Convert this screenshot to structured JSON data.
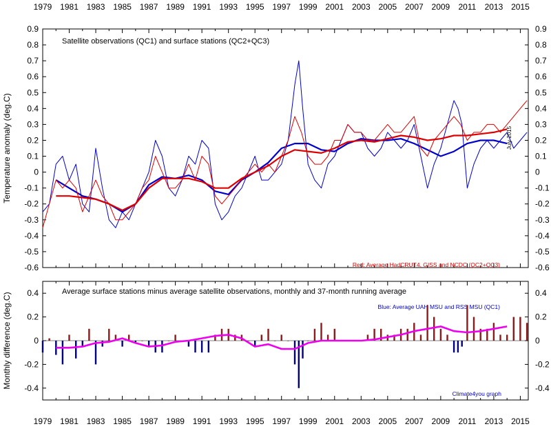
{
  "chart_data": [
    {
      "type": "line",
      "title": "Satellite observations (QC1) and surface stations (QC2+QC3)",
      "ylabel": "Temperature anomaly (deg.C)",
      "ylim": [
        -0.6,
        0.9
      ],
      "yticks": [
        "0.9",
        "0.8",
        "0.7",
        "0.6",
        "0.5",
        "0.4",
        "0.3",
        "0.2",
        "0.1",
        "0",
        "-0.1",
        "-0.2",
        "-0.3",
        "-0.4",
        "-0.5",
        "-0.6"
      ],
      "xlim": [
        1979.0,
        2015.6
      ],
      "x_tick_labels": [
        "1979",
        "1981",
        "1983",
        "1985",
        "1987",
        "1989",
        "1991",
        "1993",
        "1995",
        "1997",
        "1999",
        "2001",
        "2003",
        "2005",
        "2007",
        "2009",
        "2011",
        "2013",
        "2015"
      ],
      "date_note": "July 2015",
      "legend": [
        "Blue: Average UAH MSU and RSS MSU (QC1)",
        "Red: Average HadCRUT4, GISS and NCDC (QC2+QC3)"
      ],
      "grid": false,
      "series": [
        {
          "name": "Blue: Average UAH MSU and RSS MSU (QC1)",
          "color": "#0000cc",
          "x": [
            1979.0,
            1979.5,
            1980.0,
            1980.5,
            1981.0,
            1981.5,
            1982.0,
            1982.5,
            1983.0,
            1983.5,
            1984.0,
            1984.5,
            1985.0,
            1985.5,
            1986.0,
            1986.5,
            1987.0,
            1987.5,
            1988.0,
            1988.5,
            1989.0,
            1989.5,
            1990.0,
            1990.5,
            1991.0,
            1991.5,
            1992.0,
            1992.5,
            1993.0,
            1993.5,
            1994.0,
            1994.5,
            1995.0,
            1995.5,
            1996.0,
            1996.5,
            1997.0,
            1997.5,
            1998.0,
            1998.3,
            1998.6,
            1999.0,
            1999.5,
            2000.0,
            2000.5,
            2001.0,
            2001.5,
            2002.0,
            2002.5,
            2003.0,
            2003.5,
            2004.0,
            2004.5,
            2005.0,
            2005.5,
            2006.0,
            2006.5,
            2007.0,
            2007.5,
            2008.0,
            2008.5,
            2009.0,
            2009.5,
            2010.0,
            2010.3,
            2010.6,
            2011.0,
            2011.5,
            2012.0,
            2012.5,
            2013.0,
            2013.5,
            2014.0,
            2014.5,
            2015.0,
            2015.5
          ],
          "values": [
            -0.25,
            -0.2,
            0.05,
            0.1,
            -0.05,
            0.05,
            -0.2,
            -0.25,
            0.15,
            -0.1,
            -0.3,
            -0.35,
            -0.25,
            -0.3,
            -0.2,
            -0.1,
            0.0,
            0.2,
            0.1,
            -0.1,
            -0.15,
            -0.05,
            0.1,
            0.05,
            0.2,
            0.15,
            -0.2,
            -0.3,
            -0.25,
            -0.15,
            -0.1,
            0.0,
            0.1,
            -0.05,
            -0.05,
            0.0,
            0.05,
            0.2,
            0.55,
            0.7,
            0.4,
            0.05,
            -0.05,
            -0.1,
            0.05,
            0.1,
            0.2,
            0.3,
            0.25,
            0.25,
            0.15,
            0.1,
            0.15,
            0.25,
            0.2,
            0.15,
            0.2,
            0.3,
            0.1,
            -0.1,
            0.05,
            0.15,
            0.3,
            0.45,
            0.4,
            0.3,
            -0.1,
            0.05,
            0.15,
            0.2,
            0.15,
            0.2,
            0.25,
            0.15,
            0.2,
            0.25
          ]
        },
        {
          "name": "Blue running average",
          "color": "#0000cc",
          "x": [
            1980.0,
            1981.0,
            1982.0,
            1983.0,
            1984.0,
            1985.0,
            1986.0,
            1987.0,
            1988.0,
            1989.0,
            1990.0,
            1991.0,
            1992.0,
            1993.0,
            1994.0,
            1995.0,
            1996.0,
            1997.0,
            1998.0,
            1999.0,
            2000.0,
            2001.0,
            2002.0,
            2003.0,
            2004.0,
            2005.0,
            2006.0,
            2007.0,
            2008.0,
            2009.0,
            2010.0,
            2011.0,
            2012.0,
            2013.0,
            2014.0
          ],
          "values": [
            -0.05,
            -0.1,
            -0.15,
            -0.17,
            -0.2,
            -0.25,
            -0.2,
            -0.08,
            -0.03,
            -0.04,
            -0.02,
            -0.05,
            -0.12,
            -0.14,
            -0.05,
            0.0,
            0.06,
            0.15,
            0.18,
            0.18,
            0.14,
            0.13,
            0.18,
            0.21,
            0.2,
            0.2,
            0.21,
            0.18,
            0.14,
            0.1,
            0.13,
            0.18,
            0.2,
            0.2,
            0.18
          ]
        },
        {
          "name": "Red: Average HadCRUT4, GISS and NCDC (QC2+QC3)",
          "color": "#dd0000",
          "x": [
            1979.0,
            1979.5,
            1980.0,
            1980.5,
            1981.0,
            1981.5,
            1982.0,
            1982.5,
            1983.0,
            1983.5,
            1984.0,
            1984.5,
            1985.0,
            1985.5,
            1986.0,
            1986.5,
            1987.0,
            1987.5,
            1988.0,
            1988.5,
            1989.0,
            1989.5,
            1990.0,
            1990.5,
            1991.0,
            1991.5,
            1992.0,
            1992.5,
            1993.0,
            1993.5,
            1994.0,
            1994.5,
            1995.0,
            1995.5,
            1996.0,
            1996.5,
            1997.0,
            1997.5,
            1998.0,
            1998.5,
            1999.0,
            1999.5,
            2000.0,
            2000.5,
            2001.0,
            2001.5,
            2002.0,
            2002.5,
            2003.0,
            2003.5,
            2004.0,
            2004.5,
            2005.0,
            2005.5,
            2006.0,
            2006.5,
            2007.0,
            2007.5,
            2008.0,
            2008.5,
            2009.0,
            2009.5,
            2010.0,
            2010.5,
            2011.0,
            2011.5,
            2012.0,
            2012.5,
            2013.0,
            2013.5,
            2014.0,
            2014.5,
            2015.0,
            2015.5
          ],
          "values": [
            -0.35,
            -0.2,
            -0.05,
            -0.1,
            -0.05,
            -0.1,
            -0.25,
            -0.15,
            -0.05,
            -0.15,
            -0.2,
            -0.3,
            -0.3,
            -0.25,
            -0.2,
            -0.1,
            -0.05,
            0.1,
            0.0,
            -0.1,
            -0.1,
            -0.05,
            0.05,
            -0.05,
            0.1,
            0.05,
            -0.15,
            -0.2,
            -0.15,
            -0.1,
            -0.05,
            0.0,
            0.05,
            0.0,
            0.05,
            0.0,
            0.1,
            0.2,
            0.35,
            0.25,
            0.1,
            0.05,
            0.05,
            0.1,
            0.2,
            0.2,
            0.3,
            0.25,
            0.25,
            0.2,
            0.2,
            0.25,
            0.3,
            0.25,
            0.25,
            0.3,
            0.35,
            0.15,
            0.1,
            0.2,
            0.25,
            0.3,
            0.35,
            0.3,
            0.2,
            0.25,
            0.25,
            0.3,
            0.3,
            0.25,
            0.3,
            0.35,
            0.4,
            0.45
          ]
        },
        {
          "name": "Red running average",
          "color": "#dd0000",
          "x": [
            1980.0,
            1981.0,
            1982.0,
            1983.0,
            1984.0,
            1985.0,
            1986.0,
            1987.0,
            1988.0,
            1989.0,
            1990.0,
            1991.0,
            1992.0,
            1993.0,
            1994.0,
            1995.0,
            1996.0,
            1997.0,
            1998.0,
            1999.0,
            2000.0,
            2001.0,
            2002.0,
            2003.0,
            2004.0,
            2005.0,
            2006.0,
            2007.0,
            2008.0,
            2009.0,
            2010.0,
            2011.0,
            2012.0,
            2013.0,
            2014.0
          ],
          "values": [
            -0.15,
            -0.15,
            -0.16,
            -0.17,
            -0.2,
            -0.24,
            -0.2,
            -0.1,
            -0.04,
            -0.04,
            -0.04,
            -0.06,
            -0.1,
            -0.1,
            -0.04,
            0.0,
            0.04,
            0.1,
            0.14,
            0.13,
            0.12,
            0.15,
            0.19,
            0.2,
            0.19,
            0.21,
            0.23,
            0.22,
            0.2,
            0.21,
            0.23,
            0.23,
            0.24,
            0.25,
            0.27
          ]
        }
      ]
    },
    {
      "type": "bar",
      "title": "Average surface stations minus average satellite observations, monthly and 37-month running average",
      "ylabel": "Monthly difference (deg.C)",
      "ylim": [
        -0.5,
        0.5
      ],
      "yticks": [
        "0.4",
        "0.2",
        "0",
        "-0.2",
        "-0.4"
      ],
      "xlim": [
        1979.0,
        2015.6
      ],
      "x_tick_labels": [
        "1979",
        "1981",
        "1983",
        "1985",
        "1987",
        "1989",
        "1991",
        "1993",
        "1995",
        "1997",
        "1999",
        "2001",
        "2003",
        "2005",
        "2007",
        "2009",
        "2011",
        "2013",
        "2015"
      ],
      "credit": "Climate4you graph",
      "positive_color": "#8b1a1a",
      "negative_color": "#000080",
      "grid": false,
      "x": [
        1979.0,
        1979.5,
        1980.0,
        1980.5,
        1981.0,
        1981.5,
        1982.0,
        1982.5,
        1983.0,
        1983.5,
        1984.0,
        1984.5,
        1985.0,
        1985.5,
        1986.0,
        1986.5,
        1987.0,
        1987.5,
        1988.0,
        1988.5,
        1989.0,
        1989.5,
        1990.0,
        1990.5,
        1991.0,
        1991.5,
        1992.0,
        1992.5,
        1993.0,
        1993.5,
        1994.0,
        1994.5,
        1995.0,
        1995.5,
        1996.0,
        1996.5,
        1997.0,
        1997.5,
        1998.0,
        1998.3,
        1998.6,
        1999.0,
        1999.5,
        2000.0,
        2000.5,
        2001.0,
        2001.5,
        2002.0,
        2002.5,
        2003.0,
        2003.5,
        2004.0,
        2004.5,
        2005.0,
        2005.5,
        2006.0,
        2006.5,
        2007.0,
        2007.5,
        2008.0,
        2008.5,
        2009.0,
        2009.5,
        2010.0,
        2010.3,
        2010.6,
        2011.0,
        2011.5,
        2012.0,
        2012.5,
        2013.0,
        2013.5,
        2014.0,
        2014.5,
        2015.0,
        2015.5
      ],
      "values": [
        -0.1,
        0.02,
        -0.12,
        -0.2,
        0.05,
        -0.15,
        -0.05,
        0.1,
        -0.2,
        -0.05,
        0.1,
        0.05,
        -0.05,
        0.05,
        -0.02,
        0.0,
        -0.05,
        -0.1,
        -0.1,
        0.0,
        0.05,
        0.0,
        -0.05,
        -0.1,
        -0.1,
        -0.1,
        0.05,
        0.1,
        0.1,
        0.05,
        0.05,
        0.0,
        -0.05,
        0.05,
        0.1,
        0.0,
        0.05,
        0.0,
        -0.2,
        -0.4,
        -0.15,
        0.0,
        0.1,
        0.15,
        0.05,
        0.1,
        0.0,
        0.0,
        0.0,
        0.0,
        0.05,
        0.1,
        0.1,
        0.05,
        0.05,
        0.1,
        0.1,
        0.15,
        0.05,
        0.3,
        0.2,
        0.1,
        0.05,
        -0.1,
        -0.1,
        -0.05,
        0.3,
        0.2,
        0.1,
        0.1,
        0.15,
        0.05,
        0.05,
        0.2,
        0.2,
        0.15
      ],
      "running_average": {
        "name": "37-month running average",
        "color": "#ee00ee",
        "x": [
          1980.0,
          1981.0,
          1982.0,
          1983.0,
          1984.0,
          1985.0,
          1986.0,
          1987.0,
          1988.0,
          1989.0,
          1990.0,
          1991.0,
          1992.0,
          1993.0,
          1994.0,
          1995.0,
          1996.0,
          1997.0,
          1998.0,
          1999.0,
          2000.0,
          2001.0,
          2002.0,
          2003.0,
          2004.0,
          2005.0,
          2006.0,
          2007.0,
          2008.0,
          2009.0,
          2010.0,
          2011.0,
          2012.0,
          2013.0,
          2014.0
        ],
        "values": [
          -0.06,
          -0.06,
          -0.05,
          -0.02,
          -0.01,
          0.02,
          -0.02,
          -0.05,
          -0.04,
          -0.01,
          0.0,
          0.02,
          0.04,
          0.05,
          0.02,
          -0.05,
          -0.03,
          -0.07,
          -0.07,
          -0.02,
          0.0,
          0.0,
          0.0,
          0.0,
          0.01,
          0.03,
          0.05,
          0.08,
          0.1,
          0.12,
          0.08,
          0.07,
          0.08,
          0.1,
          0.12
        ]
      }
    }
  ]
}
